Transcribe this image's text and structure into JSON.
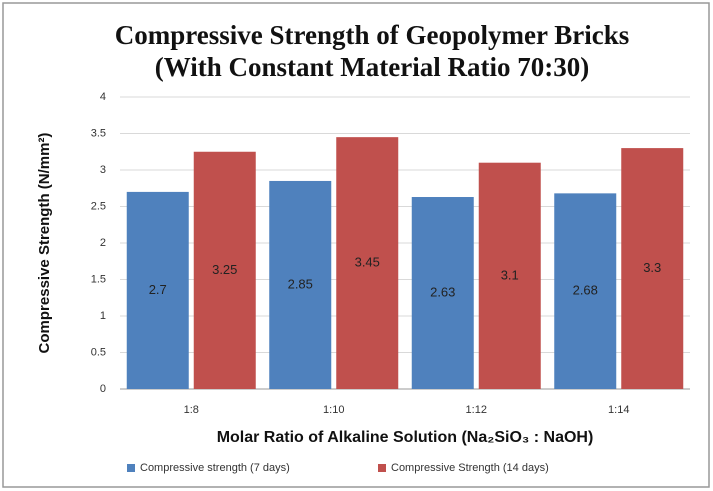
{
  "chart_data": {
    "type": "bar",
    "title": [
      "Compressive Strength of Geopolymer Bricks",
      "(With Constant Material Ratio 70:30)"
    ],
    "y_label": "Compressive Strength  (N/mm²)",
    "x_label": "Molar Ratio of Alkaline Solution (Na₂SiO₃ : NaOH)",
    "categories": [
      "1:8",
      "1:10",
      "1:12",
      "1:14"
    ],
    "series": [
      {
        "name": "Compressive strength (7 days)",
        "color": "#4f81bd",
        "values": [
          2.7,
          2.85,
          2.63,
          2.68
        ]
      },
      {
        "name": "Compressive Strength (14 days)",
        "color": "#c0504d",
        "values": [
          3.25,
          3.45,
          3.1,
          3.3
        ]
      }
    ],
    "ylim": [
      0,
      4
    ],
    "yticks": [
      0,
      0.5,
      1,
      1.5,
      2,
      2.5,
      3,
      3.5,
      4
    ],
    "grid": true,
    "legend": "bottom"
  }
}
